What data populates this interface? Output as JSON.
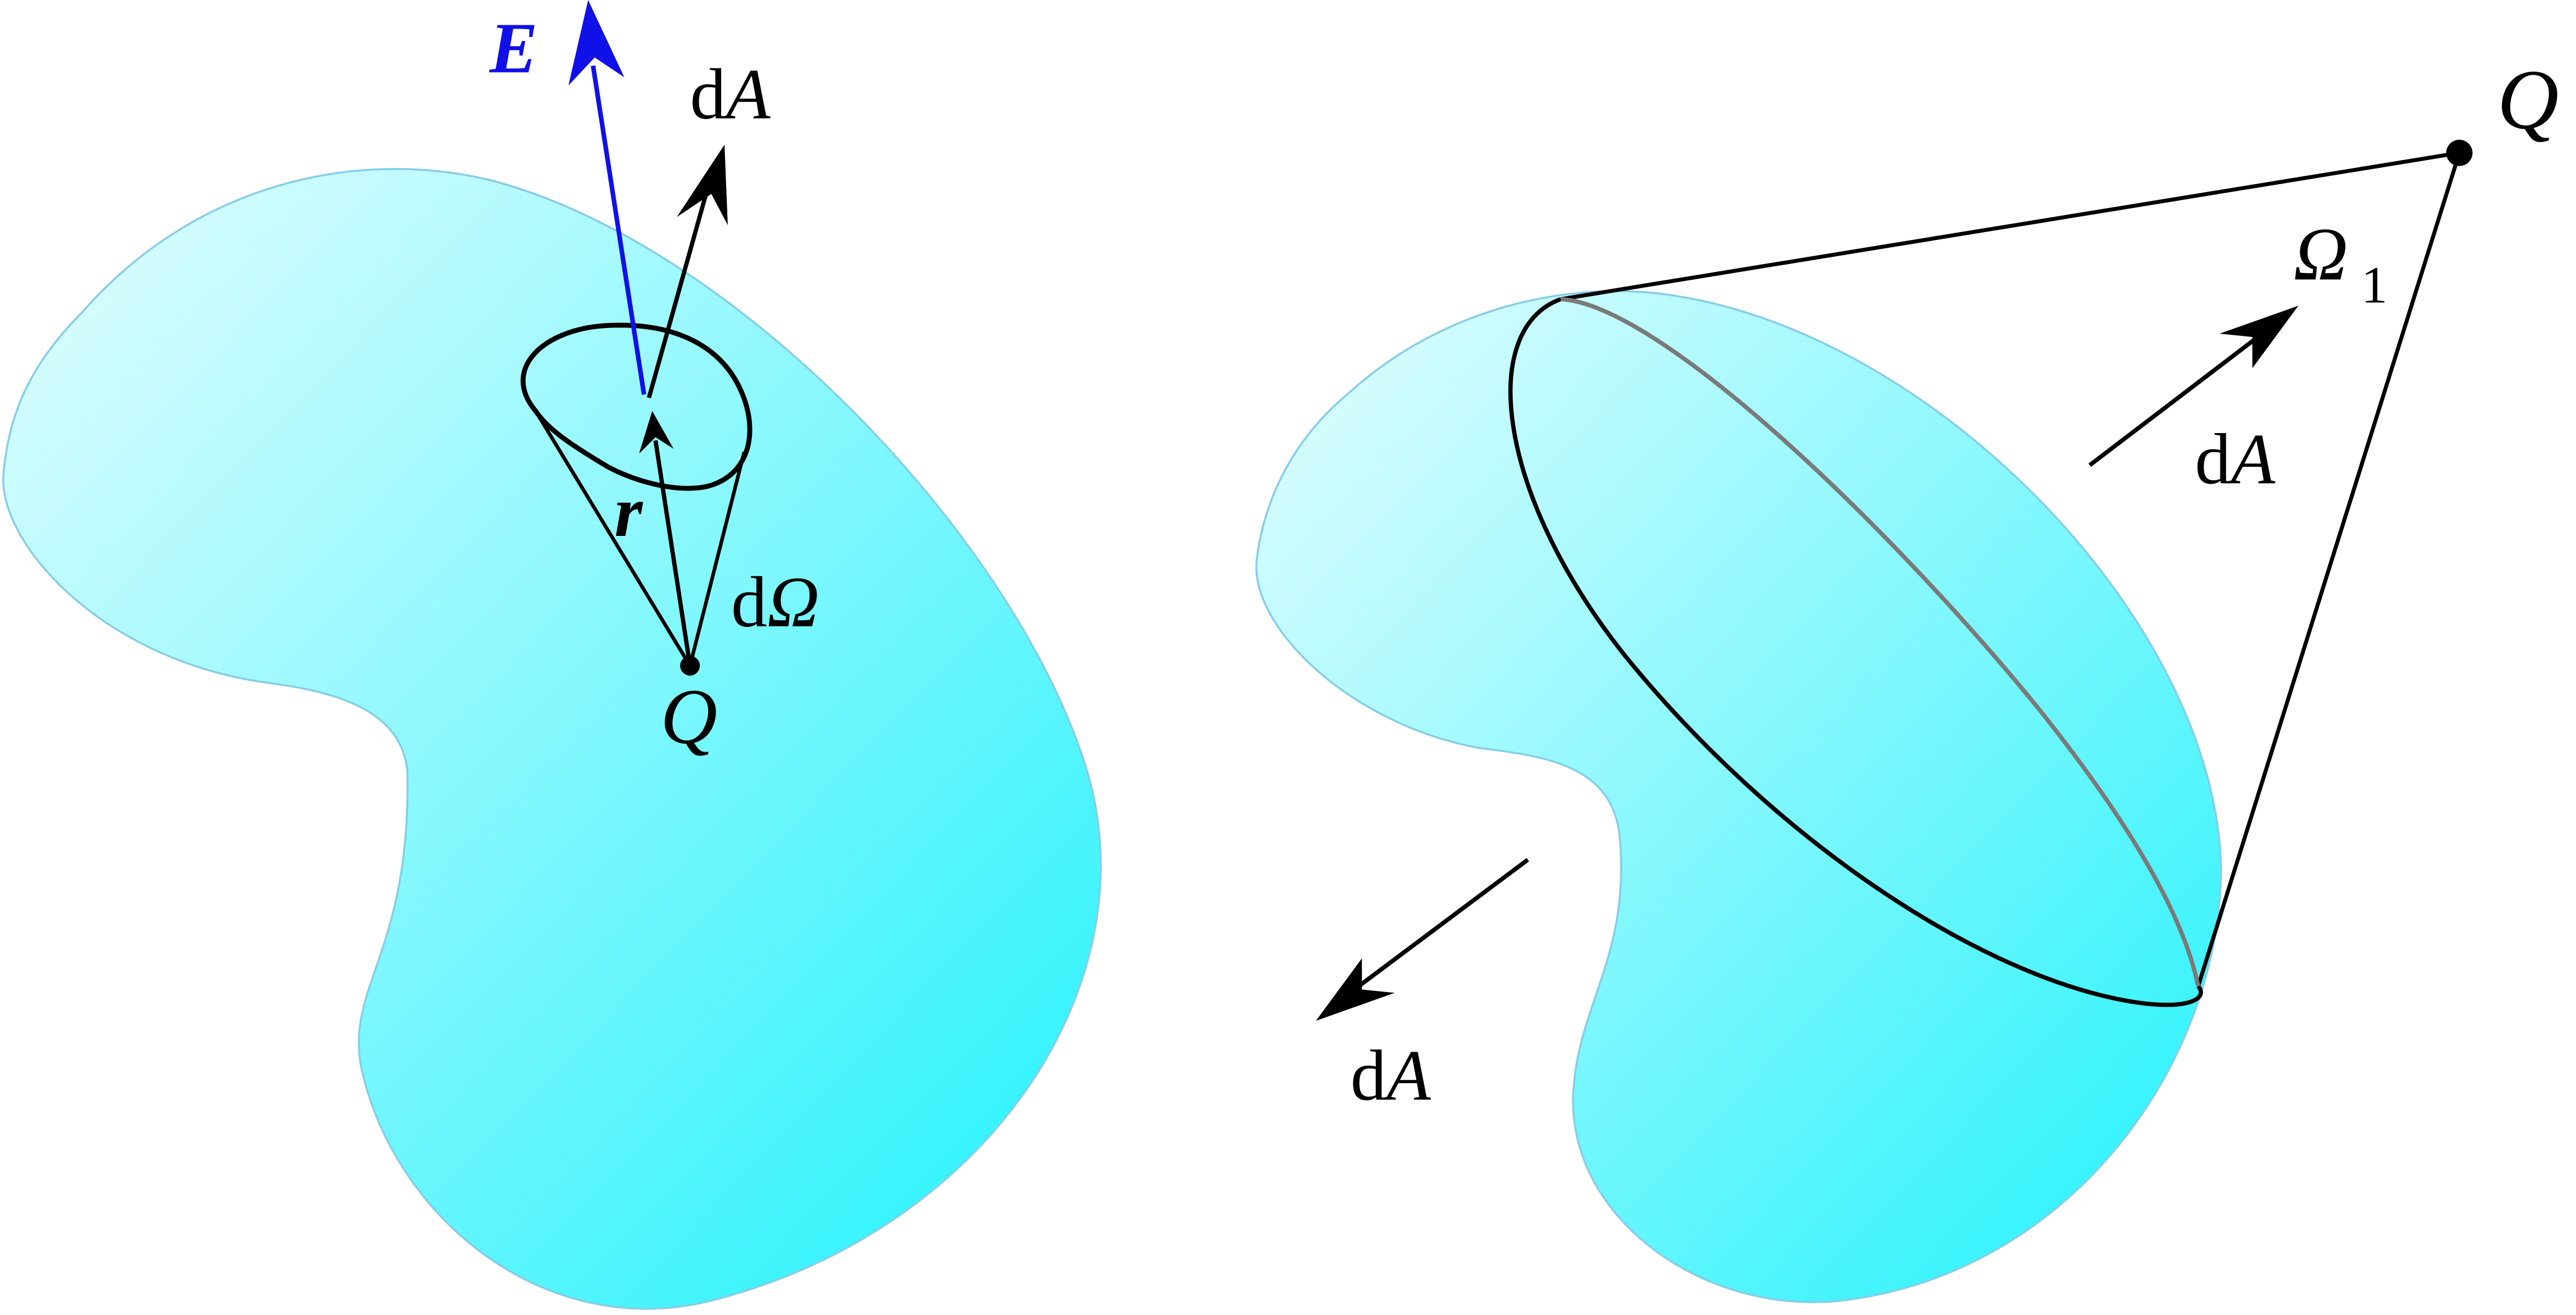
{
  "colors": {
    "surface_light": "#e6fdff",
    "surface_dark": "#1ff2fb",
    "surface_edge": "#86cde8",
    "field_vector": "#1010e8",
    "ink": "#000000",
    "hidden_edge": "#7a7a7a"
  },
  "left_panel": {
    "field_label": "E",
    "area_element_label_prefix": "d",
    "area_element_label_var": "A",
    "radius_label": "r",
    "solid_angle_label_prefix": "d",
    "solid_angle_label_var": "Ω",
    "charge_label": "Q"
  },
  "right_panel": {
    "charge_label": "Q",
    "solid_angle_label": "Ω",
    "solid_angle_subscript": "1",
    "outward_area_label_prefix": "d",
    "outward_area_label_var": "A",
    "inward_area_label_prefix": "d",
    "inward_area_label_var": "A"
  }
}
